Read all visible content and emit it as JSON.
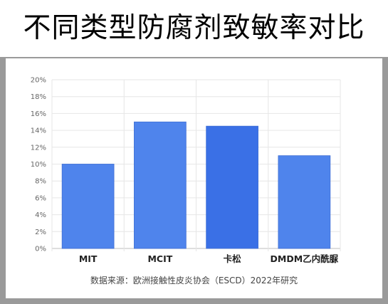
{
  "header": {
    "title": "不同类型防腐剂致敏率对比"
  },
  "colors": {
    "bar": "#4f84ec",
    "bar_highlight": "#3a70e6",
    "grid": "#e6e6e6",
    "page_bg": "#9a9a9a"
  },
  "chart_data": {
    "type": "bar",
    "title": "",
    "xlabel": "",
    "ylabel": "",
    "categories": [
      "MIT",
      "MCIT",
      "卡松",
      "DMDM乙内酰脲"
    ],
    "values": [
      10,
      15,
      14.5,
      11
    ],
    "ylim": [
      0,
      20
    ],
    "yticks": [
      "0%",
      "2%",
      "4%",
      "6%",
      "8%",
      "10%",
      "12%",
      "14%",
      "16%",
      "18%",
      "20%"
    ],
    "grid": true,
    "source": "数据来源：欧洲接触性皮炎协会（ESCD）2022年研究"
  }
}
